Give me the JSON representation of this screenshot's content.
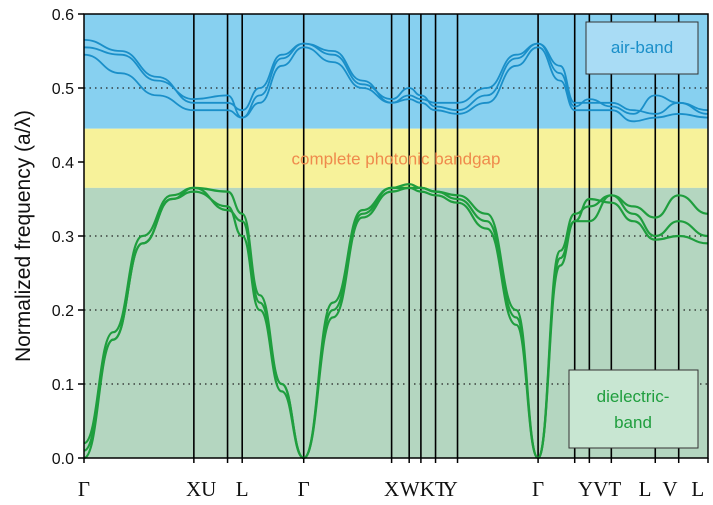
{
  "chart_data": {
    "type": "line",
    "ylabel": "Normalized frequency (a/λ)",
    "ylim": [
      0.0,
      0.6
    ],
    "yticks": [
      "0.0",
      "0.1",
      "0.2",
      "0.3",
      "0.4",
      "0.5",
      "0.6"
    ],
    "dotted_grid_y": [
      0.1,
      0.2,
      0.3,
      0.5
    ],
    "x_tick_positions": [
      0,
      0.75,
      0.98,
      1.08,
      1.5,
      2.1,
      2.22,
      2.3,
      2.4,
      2.55,
      3.1,
      3.35,
      3.45,
      3.6,
      3.9,
      4.06,
      4.26
    ],
    "xticks": [
      {
        "x": 0,
        "label": "Γ"
      },
      {
        "x": 0.8,
        "label": "XU"
      },
      {
        "x": 1.08,
        "label": "L"
      },
      {
        "x": 1.5,
        "label": "Γ"
      },
      {
        "x": 2.1,
        "label": "X"
      },
      {
        "x": 2.32,
        "label": "WKT"
      },
      {
        "x": 2.5,
        "label": "Y"
      },
      {
        "x": 3.1,
        "label": "Γ"
      },
      {
        "x": 3.52,
        "label": "YVT"
      },
      {
        "x": 3.83,
        "label": "L"
      },
      {
        "x": 4.0,
        "label": "V"
      },
      {
        "x": 4.19,
        "label": "L"
      }
    ],
    "xlim": [
      0,
      4.26
    ],
    "regions": [
      {
        "name": "air-band",
        "y_range": [
          0.445,
          0.6
        ],
        "color": "#87d0f0"
      },
      {
        "name": "complete photonic bandgap",
        "y_range": [
          0.365,
          0.445
        ],
        "color": "#f7f29a"
      },
      {
        "name": "dielectric-band",
        "y_range": [
          0.0,
          0.365
        ],
        "color": "#b4d6c0"
      }
    ],
    "series": [
      {
        "band": "air",
        "color": "#1a8fc9",
        "x": [
          0,
          0.25,
          0.5,
          0.75,
          0.98,
          1.08,
          1.2,
          1.35,
          1.5,
          1.7,
          1.9,
          2.1,
          2.22,
          2.3,
          2.4,
          2.55,
          2.75,
          2.95,
          3.1,
          3.25,
          3.35,
          3.45,
          3.6,
          3.75,
          3.9,
          4.06,
          4.26
        ],
        "y": [
          0.565,
          0.55,
          0.515,
          0.48,
          0.48,
          0.47,
          0.5,
          0.545,
          0.56,
          0.55,
          0.51,
          0.48,
          0.49,
          0.485,
          0.48,
          0.48,
          0.5,
          0.545,
          0.56,
          0.53,
          0.48,
          0.48,
          0.48,
          0.47,
          0.465,
          0.48,
          0.465
        ]
      },
      {
        "band": "air",
        "color": "#1a8fc9",
        "x": [
          0,
          0.25,
          0.5,
          0.75,
          0.98,
          1.08,
          1.2,
          1.35,
          1.5,
          1.7,
          1.9,
          2.1,
          2.22,
          2.3,
          2.4,
          2.55,
          2.75,
          2.95,
          3.1,
          3.25,
          3.35,
          3.45,
          3.6,
          3.75,
          3.9,
          4.06,
          4.26
        ],
        "y": [
          0.555,
          0.545,
          0.51,
          0.485,
          0.49,
          0.46,
          0.49,
          0.54,
          0.56,
          0.545,
          0.505,
          0.485,
          0.5,
          0.49,
          0.475,
          0.47,
          0.49,
          0.54,
          0.56,
          0.52,
          0.475,
          0.485,
          0.475,
          0.465,
          0.49,
          0.48,
          0.47
        ]
      },
      {
        "band": "air",
        "color": "#1a8fc9",
        "x": [
          0,
          0.25,
          0.5,
          0.75,
          0.98,
          1.08,
          1.2,
          1.35,
          1.5,
          1.7,
          1.9,
          2.1,
          2.22,
          2.3,
          2.4,
          2.55,
          2.75,
          2.95,
          3.1,
          3.25,
          3.35,
          3.45,
          3.6,
          3.75,
          3.9,
          4.06,
          4.26
        ],
        "y": [
          0.545,
          0.52,
          0.49,
          0.47,
          0.47,
          0.46,
          0.48,
          0.53,
          0.555,
          0.535,
          0.5,
          0.48,
          0.485,
          0.48,
          0.47,
          0.465,
          0.48,
          0.53,
          0.555,
          0.51,
          0.47,
          0.47,
          0.47,
          0.455,
          0.46,
          0.465,
          0.46
        ]
      },
      {
        "band": "dielectric",
        "color": "#1f9e3e",
        "x": [
          0,
          0.2,
          0.4,
          0.6,
          0.75,
          0.98,
          1.08,
          1.2,
          1.35,
          1.5,
          1.7,
          1.9,
          2.1,
          2.22,
          2.3,
          2.4,
          2.55,
          2.75,
          2.95,
          3.1,
          3.25,
          3.35,
          3.45,
          3.6,
          3.75,
          3.9,
          4.06,
          4.26
        ],
        "y": [
          0.0,
          0.16,
          0.29,
          0.35,
          0.365,
          0.335,
          0.32,
          0.21,
          0.1,
          0.0,
          0.2,
          0.33,
          0.365,
          0.365,
          0.365,
          0.36,
          0.355,
          0.33,
          0.2,
          0.0,
          0.27,
          0.32,
          0.32,
          0.355,
          0.33,
          0.3,
          0.32,
          0.3
        ]
      },
      {
        "band": "dielectric",
        "color": "#1f9e3e",
        "x": [
          0,
          0.2,
          0.4,
          0.6,
          0.75,
          0.98,
          1.08,
          1.2,
          1.35,
          1.5,
          1.7,
          1.9,
          2.1,
          2.22,
          2.3,
          2.4,
          2.55,
          2.75,
          2.95,
          3.1,
          3.25,
          3.35,
          3.45,
          3.6,
          3.75,
          3.9,
          4.06,
          4.26
        ],
        "y": [
          0.02,
          0.17,
          0.3,
          0.355,
          0.365,
          0.36,
          0.33,
          0.22,
          0.1,
          0.0,
          0.21,
          0.335,
          0.365,
          0.37,
          0.365,
          0.36,
          0.35,
          0.32,
          0.19,
          0.0,
          0.28,
          0.33,
          0.34,
          0.355,
          0.34,
          0.325,
          0.355,
          0.33
        ]
      },
      {
        "band": "dielectric",
        "color": "#1f9e3e",
        "x": [
          0,
          0.2,
          0.4,
          0.6,
          0.75,
          0.98,
          1.08,
          1.2,
          1.35,
          1.5,
          1.7,
          1.9,
          2.1,
          2.22,
          2.3,
          2.4,
          2.55,
          2.75,
          2.95,
          3.1,
          3.25,
          3.35,
          3.45,
          3.6,
          3.75,
          3.9,
          4.06,
          4.26
        ],
        "y": [
          0.01,
          0.16,
          0.29,
          0.35,
          0.36,
          0.34,
          0.3,
          0.2,
          0.09,
          0.0,
          0.19,
          0.325,
          0.36,
          0.365,
          0.36,
          0.355,
          0.345,
          0.31,
          0.18,
          0.0,
          0.26,
          0.32,
          0.35,
          0.345,
          0.32,
          0.295,
          0.3,
          0.29
        ]
      }
    ]
  }
}
